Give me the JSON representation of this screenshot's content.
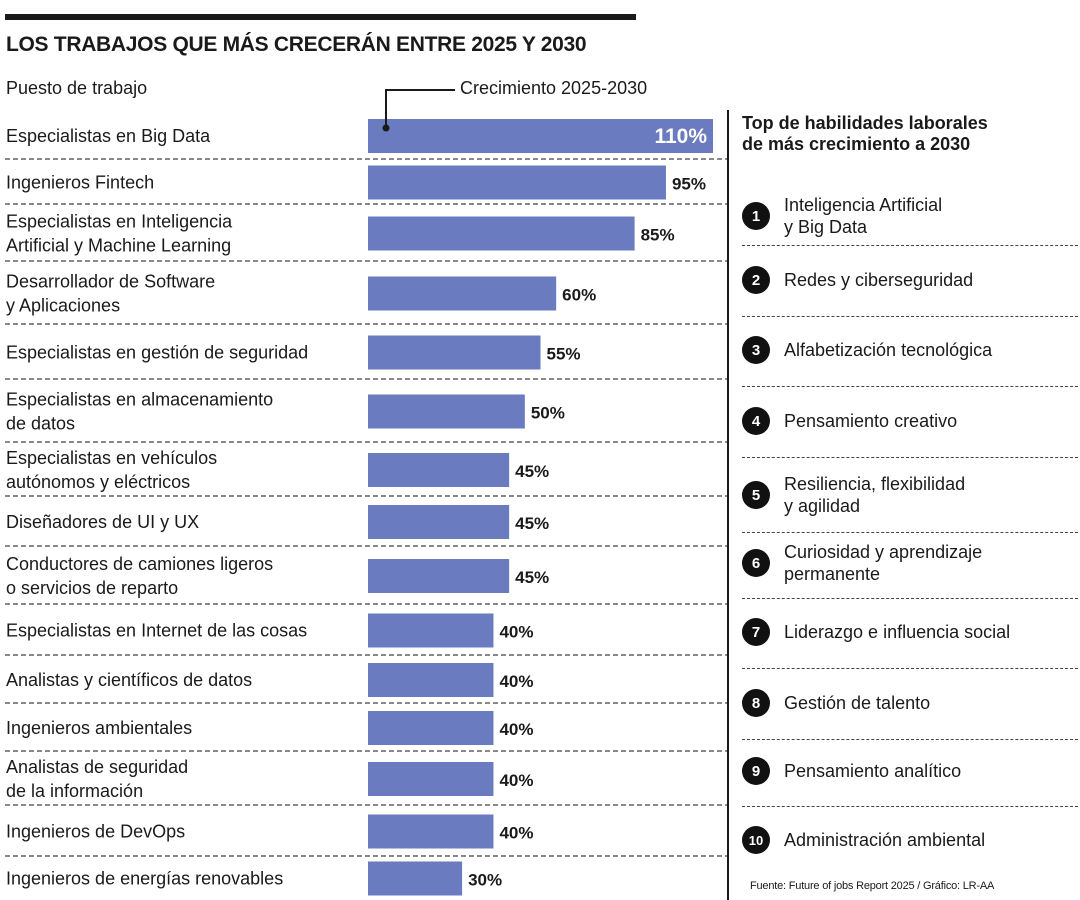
{
  "header": {
    "title": "LOS TRABAJOS QUE MÁS CRECERÁN ENTRE 2025 Y 2030",
    "column_header": "Puesto de trabajo",
    "series_label": "Crecimiento 2025-2030"
  },
  "colors": {
    "bar": "#6a7bbf",
    "text": "#1a1a1a",
    "value_on_bar": "#ffffff"
  },
  "chart_data": {
    "type": "bar",
    "orientation": "horizontal",
    "title": "LOS TRABAJOS QUE MÁS CRECERÁN ENTRE 2025 Y 2030",
    "series": [
      {
        "name": "Crecimiento 2025-2030",
        "values": [
          110,
          95,
          85,
          60,
          55,
          50,
          45,
          45,
          45,
          40,
          40,
          40,
          40,
          40,
          30
        ]
      }
    ],
    "categories": [
      "Especialistas en Big Data",
      "Ingenieros Fintech",
      "Especialistas en Inteligencia\nArtificial y Machine Learning",
      "Desarrollador de Software\ny Aplicaciones",
      "Especialistas en gestión de seguridad",
      "Especialistas en almacenamiento\nde datos",
      "Especialistas en vehículos\nautónomos y eléctricos",
      "Diseñadores de UI y UX",
      "Conductores de camiones ligeros\no servicios de reparto",
      "Especialistas en Internet de las cosas",
      "Analistas y científicos de datos",
      "Ingenieros ambientales",
      "Analistas de seguridad\nde la información",
      "Ingenieros de DevOps",
      "Ingenieros de energías renovables"
    ],
    "value_labels": [
      "110%",
      "95%",
      "85%",
      "60%",
      "55%",
      "50%",
      "45%",
      "45%",
      "45%",
      "40%",
      "40%",
      "40%",
      "40%",
      "40%",
      "30%"
    ],
    "unit": "%",
    "xlim": [
      0,
      110
    ],
    "grid": false,
    "legend": "none"
  },
  "skills": {
    "title": "Top de habilidades laborales\nde más crecimiento a 2030",
    "items": [
      {
        "num": "1",
        "label": "Inteligencia Artificial\ny Big Data"
      },
      {
        "num": "2",
        "label": "Redes y ciberseguridad"
      },
      {
        "num": "3",
        "label": "Alfabetización tecnológica"
      },
      {
        "num": "4",
        "label": "Pensamiento creativo"
      },
      {
        "num": "5",
        "label": "Resiliencia, flexibilidad\ny agilidad"
      },
      {
        "num": "6",
        "label": "Curiosidad y aprendizaje\npermanente"
      },
      {
        "num": "7",
        "label": "Liderazgo e influencia social"
      },
      {
        "num": "8",
        "label": "Gestión de talento"
      },
      {
        "num": "9",
        "label": "Pensamiento analítico"
      },
      {
        "num": "10",
        "label": "Administración ambiental"
      }
    ]
  },
  "footer": {
    "source": "Fuente: Future of jobs Report 2025 / Gráfico: LR-AA"
  }
}
